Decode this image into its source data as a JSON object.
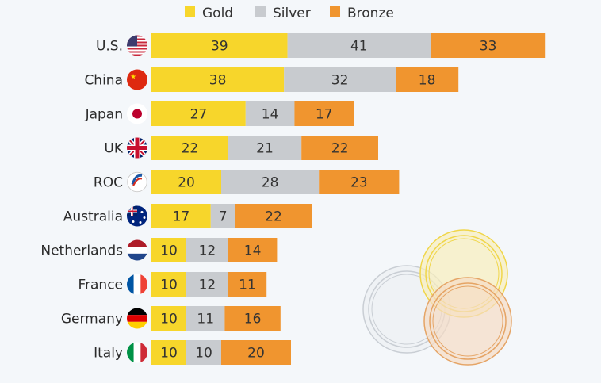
{
  "chart_data": {
    "type": "bar",
    "orientation": "horizontal",
    "stacked": true,
    "legend_position": "top",
    "grid": false,
    "categories": [
      "U.S.",
      "China",
      "Japan",
      "UK",
      "ROC",
      "Australia",
      "Netherlands",
      "France",
      "Germany",
      "Italy"
    ],
    "flags": [
      "us-flag",
      "china-flag",
      "japan-flag",
      "uk-flag",
      "roc-emblem",
      "australia-flag",
      "netherlands-flag",
      "france-flag",
      "germany-flag",
      "italy-flag"
    ],
    "series": [
      {
        "name": "Gold",
        "color": "#f7d62b",
        "values": [
          39,
          38,
          27,
          22,
          20,
          17,
          10,
          10,
          10,
          10
        ]
      },
      {
        "name": "Silver",
        "color": "#c8cbcf",
        "values": [
          41,
          32,
          14,
          21,
          28,
          7,
          12,
          12,
          11,
          10
        ]
      },
      {
        "name": "Bronze",
        "color": "#f0952f",
        "values": [
          33,
          18,
          17,
          22,
          23,
          22,
          14,
          11,
          16,
          20
        ]
      }
    ]
  }
}
